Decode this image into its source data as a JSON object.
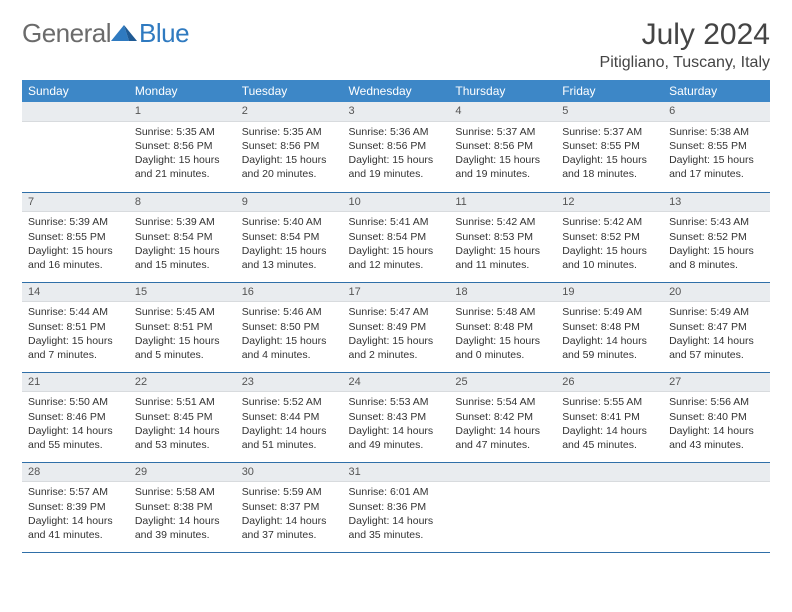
{
  "brand": {
    "part1": "General",
    "part2": "Blue"
  },
  "title": "July 2024",
  "location": "Pitigliano, Tuscany, Italy",
  "colors": {
    "header_bg": "#3d87c7",
    "daynum_bg": "#e9ecef",
    "row_border": "#2f6fa8",
    "brand_gray": "#6b6b6b",
    "brand_blue": "#2f7ac0"
  },
  "day_headers": [
    "Sunday",
    "Monday",
    "Tuesday",
    "Wednesday",
    "Thursday",
    "Friday",
    "Saturday"
  ],
  "weeks": [
    [
      null,
      {
        "n": "1",
        "sr": "5:35 AM",
        "ss": "8:56 PM",
        "dl": "15 hours and 21 minutes."
      },
      {
        "n": "2",
        "sr": "5:35 AM",
        "ss": "8:56 PM",
        "dl": "15 hours and 20 minutes."
      },
      {
        "n": "3",
        "sr": "5:36 AM",
        "ss": "8:56 PM",
        "dl": "15 hours and 19 minutes."
      },
      {
        "n": "4",
        "sr": "5:37 AM",
        "ss": "8:56 PM",
        "dl": "15 hours and 19 minutes."
      },
      {
        "n": "5",
        "sr": "5:37 AM",
        "ss": "8:55 PM",
        "dl": "15 hours and 18 minutes."
      },
      {
        "n": "6",
        "sr": "5:38 AM",
        "ss": "8:55 PM",
        "dl": "15 hours and 17 minutes."
      }
    ],
    [
      {
        "n": "7",
        "sr": "5:39 AM",
        "ss": "8:55 PM",
        "dl": "15 hours and 16 minutes."
      },
      {
        "n": "8",
        "sr": "5:39 AM",
        "ss": "8:54 PM",
        "dl": "15 hours and 15 minutes."
      },
      {
        "n": "9",
        "sr": "5:40 AM",
        "ss": "8:54 PM",
        "dl": "15 hours and 13 minutes."
      },
      {
        "n": "10",
        "sr": "5:41 AM",
        "ss": "8:54 PM",
        "dl": "15 hours and 12 minutes."
      },
      {
        "n": "11",
        "sr": "5:42 AM",
        "ss": "8:53 PM",
        "dl": "15 hours and 11 minutes."
      },
      {
        "n": "12",
        "sr": "5:42 AM",
        "ss": "8:52 PM",
        "dl": "15 hours and 10 minutes."
      },
      {
        "n": "13",
        "sr": "5:43 AM",
        "ss": "8:52 PM",
        "dl": "15 hours and 8 minutes."
      }
    ],
    [
      {
        "n": "14",
        "sr": "5:44 AM",
        "ss": "8:51 PM",
        "dl": "15 hours and 7 minutes."
      },
      {
        "n": "15",
        "sr": "5:45 AM",
        "ss": "8:51 PM",
        "dl": "15 hours and 5 minutes."
      },
      {
        "n": "16",
        "sr": "5:46 AM",
        "ss": "8:50 PM",
        "dl": "15 hours and 4 minutes."
      },
      {
        "n": "17",
        "sr": "5:47 AM",
        "ss": "8:49 PM",
        "dl": "15 hours and 2 minutes."
      },
      {
        "n": "18",
        "sr": "5:48 AM",
        "ss": "8:48 PM",
        "dl": "15 hours and 0 minutes."
      },
      {
        "n": "19",
        "sr": "5:49 AM",
        "ss": "8:48 PM",
        "dl": "14 hours and 59 minutes."
      },
      {
        "n": "20",
        "sr": "5:49 AM",
        "ss": "8:47 PM",
        "dl": "14 hours and 57 minutes."
      }
    ],
    [
      {
        "n": "21",
        "sr": "5:50 AM",
        "ss": "8:46 PM",
        "dl": "14 hours and 55 minutes."
      },
      {
        "n": "22",
        "sr": "5:51 AM",
        "ss": "8:45 PM",
        "dl": "14 hours and 53 minutes."
      },
      {
        "n": "23",
        "sr": "5:52 AM",
        "ss": "8:44 PM",
        "dl": "14 hours and 51 minutes."
      },
      {
        "n": "24",
        "sr": "5:53 AM",
        "ss": "8:43 PM",
        "dl": "14 hours and 49 minutes."
      },
      {
        "n": "25",
        "sr": "5:54 AM",
        "ss": "8:42 PM",
        "dl": "14 hours and 47 minutes."
      },
      {
        "n": "26",
        "sr": "5:55 AM",
        "ss": "8:41 PM",
        "dl": "14 hours and 45 minutes."
      },
      {
        "n": "27",
        "sr": "5:56 AM",
        "ss": "8:40 PM",
        "dl": "14 hours and 43 minutes."
      }
    ],
    [
      {
        "n": "28",
        "sr": "5:57 AM",
        "ss": "8:39 PM",
        "dl": "14 hours and 41 minutes."
      },
      {
        "n": "29",
        "sr": "5:58 AM",
        "ss": "8:38 PM",
        "dl": "14 hours and 39 minutes."
      },
      {
        "n": "30",
        "sr": "5:59 AM",
        "ss": "8:37 PM",
        "dl": "14 hours and 37 minutes."
      },
      {
        "n": "31",
        "sr": "6:01 AM",
        "ss": "8:36 PM",
        "dl": "14 hours and 35 minutes."
      },
      null,
      null,
      null
    ]
  ],
  "labels": {
    "sunrise": "Sunrise:",
    "sunset": "Sunset:",
    "daylight": "Daylight:"
  }
}
